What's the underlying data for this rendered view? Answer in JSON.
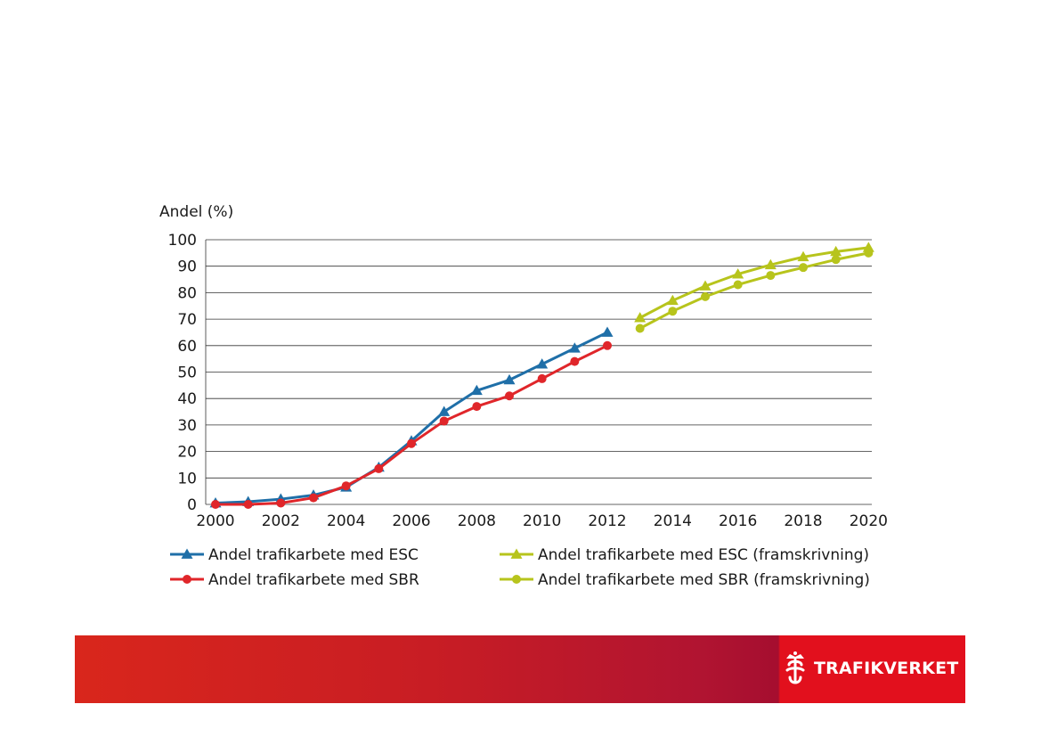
{
  "chart_data": {
    "type": "line",
    "ylabel": "Andel (%)",
    "ylim": [
      0,
      100
    ],
    "yticks": [
      0,
      10,
      20,
      30,
      40,
      50,
      60,
      70,
      80,
      90,
      100
    ],
    "xlim": [
      1999.7,
      2020.1
    ],
    "xticks": [
      2000,
      2002,
      2004,
      2006,
      2008,
      2010,
      2012,
      2014,
      2016,
      2018,
      2020
    ],
    "grid": true,
    "series": [
      {
        "name": "Andel trafikarbete med ESC",
        "color": "#1f6fa8",
        "marker": "triangle",
        "x": [
          2000,
          2001,
          2002,
          2003,
          2004,
          2005,
          2006,
          2007,
          2008,
          2009,
          2010,
          2011,
          2012
        ],
        "y": [
          0.5,
          1,
          2,
          3.5,
          6.5,
          14,
          24,
          35,
          43,
          47,
          53,
          59,
          65
        ]
      },
      {
        "name": "Andel trafikarbete med SBR",
        "color": "#e0262a",
        "marker": "circle",
        "x": [
          2000,
          2001,
          2002,
          2003,
          2004,
          2005,
          2006,
          2007,
          2008,
          2009,
          2010,
          2011,
          2012
        ],
        "y": [
          0,
          0,
          0.5,
          2.5,
          7,
          13.5,
          23,
          31.5,
          37,
          41,
          47.5,
          54,
          60
        ]
      },
      {
        "name": "Andel trafikarbete med ESC (framskrivning)",
        "color": "#b7c41c",
        "marker": "triangle",
        "x": [
          2013,
          2014,
          2015,
          2016,
          2017,
          2018,
          2019,
          2020
        ],
        "y": [
          70.5,
          77,
          82.5,
          87,
          90.5,
          93.5,
          95.5,
          97
        ]
      },
      {
        "name": "Andel trafikarbete med SBR (framskrivning)",
        "color": "#b7c41c",
        "marker": "circle",
        "x": [
          2013,
          2014,
          2015,
          2016,
          2017,
          2018,
          2019,
          2020
        ],
        "y": [
          66.5,
          73,
          78.5,
          83,
          86.5,
          89.5,
          92.5,
          95
        ]
      }
    ],
    "legend": "bottom, two columns"
  },
  "footer": {
    "brand": "TRAFIKVERKET",
    "colors": {
      "bar_start": "#d9261c",
      "bar_end": "#a50e2f",
      "logo_bg": "#e2101d"
    }
  }
}
